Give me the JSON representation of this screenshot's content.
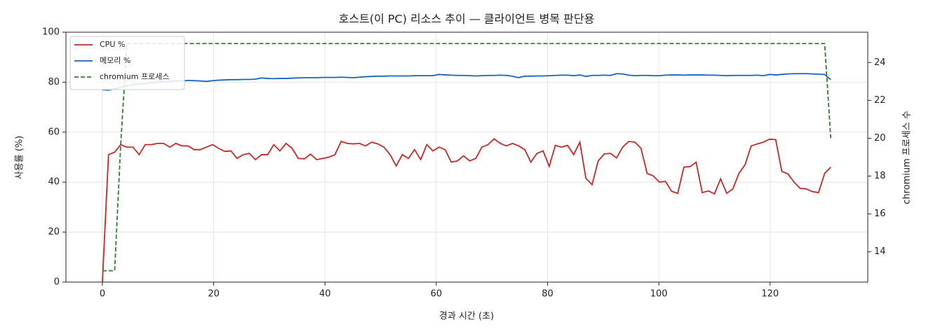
{
  "chart_data": {
    "type": "line",
    "title": "호스트(이 PC) 리소스 추이 — 클라이언트 병목 판단용",
    "xlabel": "경과 시간 (초)",
    "ylabel": "사용률 (%)",
    "y2label": "chromium 프로세스 수",
    "xlim": [
      -6.55,
      137.55
    ],
    "xticks": [
      0,
      20,
      40,
      60,
      80,
      100,
      120
    ],
    "ylim": [
      0,
      100
    ],
    "yticks": [
      0,
      20,
      40,
      60,
      80,
      100
    ],
    "y2lim": [
      12.4,
      25.6
    ],
    "y2ticks": [
      14,
      16,
      18,
      20,
      22,
      24
    ],
    "grid": true,
    "legend": "upper left",
    "x": [
      0,
      1.1,
      2.2,
      3.3,
      4.4,
      5.5,
      6.6,
      7.7,
      8.8,
      9.9,
      11,
      12.1,
      13.2,
      14.3,
      15.4,
      16.5,
      17.6,
      18.7,
      19.8,
      20.9,
      22,
      23.1,
      24.2,
      25.3,
      26.4,
      27.5,
      28.6,
      29.7,
      30.8,
      31.9,
      33,
      34.1,
      35.2,
      36.3,
      37.4,
      38.5,
      39.6,
      40.7,
      41.8,
      42.9,
      44,
      45.1,
      46.2,
      47.3,
      48.4,
      49.5,
      50.6,
      51.7,
      52.8,
      53.9,
      55,
      56.1,
      57.2,
      58.3,
      59.4,
      60.5,
      61.6,
      62.7,
      63.8,
      64.9,
      66,
      67.1,
      68.2,
      69.3,
      70.4,
      71.5,
      72.6,
      73.7,
      74.8,
      75.9,
      77,
      78.1,
      79.2,
      80.3,
      81.4,
      82.5,
      83.6,
      84.7,
      85.8,
      86.9,
      88,
      89.1,
      90.2,
      91.3,
      92.4,
      93.5,
      94.6,
      95.7,
      96.8,
      97.9,
      99,
      100.1,
      101.2,
      102.3,
      103.4,
      104.5,
      105.6,
      106.7,
      107.8,
      108.9,
      110,
      111.1,
      112.2,
      113.3,
      114.4,
      115.5,
      116.6,
      117.7,
      118.8,
      119.9,
      121,
      122.1,
      123.2,
      124.3,
      125.4,
      126.5,
      127.6,
      128.7,
      129.8,
      130.9
    ],
    "series": [
      {
        "name": "CPU %",
        "color": "#c62828",
        "linestyle": "solid",
        "values": [
          0,
          51,
          52,
          55,
          54,
          54,
          51,
          55,
          55,
          55.5,
          55.5,
          54,
          55.5,
          54.5,
          54.5,
          53,
          53,
          54,
          55,
          53.5,
          52.3,
          52.5,
          49.5,
          51,
          51.5,
          49,
          51,
          51,
          55,
          52.5,
          55.5,
          53.5,
          49.5,
          49.3,
          51.2,
          49,
          49.5,
          50,
          51,
          56.3,
          55.5,
          55.3,
          55.5,
          54.5,
          56,
          55.3,
          54,
          51,
          46.5,
          51,
          49.5,
          53,
          49,
          55,
          52.5,
          54,
          53,
          48,
          48.5,
          50.5,
          48.5,
          49.5,
          54,
          55,
          57.3,
          55.5,
          54.5,
          55.5,
          54.5,
          53,
          48,
          51.5,
          52.5,
          46.3,
          54.7,
          54,
          54.7,
          51,
          56,
          41.5,
          39,
          48.5,
          51.3,
          51.5,
          49.7,
          54,
          56.3,
          56,
          53.5,
          43.5,
          42.5,
          40,
          40.3,
          36.3,
          35.5,
          46,
          46.2,
          48,
          35.8,
          36.5,
          35.3,
          41.3,
          35.5,
          37.3,
          43.5,
          47,
          54.5,
          55.3,
          56,
          57.2,
          57,
          44.3,
          43.3,
          40,
          37.5,
          37.3,
          36.2,
          35.8,
          43.5,
          46
        ]
      },
      {
        "name": "메모리 %",
        "color": "#1565c0",
        "linestyle": "solid",
        "values": [
          77,
          76.8,
          77.3,
          78,
          78.5,
          79,
          79.3,
          79.5,
          79.8,
          80,
          80.2,
          80.3,
          80.5,
          80.5,
          80.7,
          80.6,
          80.5,
          80.3,
          80.6,
          80.8,
          80.9,
          81,
          81,
          81.1,
          81.1,
          81.2,
          81.7,
          81.5,
          81.4,
          81.5,
          81.5,
          81.6,
          81.7,
          81.8,
          81.8,
          81.8,
          81.9,
          81.9,
          81.9,
          82,
          81.9,
          81.8,
          82,
          82.2,
          82.3,
          82.4,
          82.4,
          82.5,
          82.5,
          82.5,
          82.5,
          82.6,
          82.6,
          82.6,
          82.6,
          83.1,
          82.9,
          82.8,
          82.7,
          82.7,
          82.6,
          82.5,
          82.6,
          82.7,
          82.7,
          82.8,
          82.7,
          82.4,
          81.8,
          82.4,
          82.4,
          82.5,
          82.5,
          82.6,
          82.7,
          82.8,
          82.8,
          82.6,
          82.9,
          82.3,
          82.7,
          82.7,
          82.8,
          82.7,
          83.4,
          83.3,
          82.8,
          82.6,
          82.7,
          82.7,
          82.6,
          82.6,
          82.8,
          82.9,
          82.9,
          82.8,
          82.9,
          82.9,
          82.9,
          82.8,
          82.8,
          82.7,
          82.6,
          82.7,
          82.7,
          82.7,
          82.7,
          82.8,
          82.6,
          83.1,
          82.9,
          83.1,
          83.3,
          83.4,
          83.4,
          83.4,
          83.3,
          83.2,
          83.1,
          81
        ]
      },
      {
        "name": "chromium 프로세스",
        "color": "#2e7d32",
        "linestyle": "dashed",
        "axis": "y2",
        "values": [
          13,
          13,
          13,
          19.7,
          25,
          25,
          25,
          25,
          25,
          25,
          25,
          25,
          25,
          25,
          25,
          25,
          25,
          25,
          25,
          25,
          25,
          25,
          25,
          25,
          25,
          25,
          25,
          25,
          25,
          25,
          25,
          25,
          25,
          25,
          25,
          25,
          25,
          25,
          25,
          25,
          25,
          25,
          25,
          25,
          25,
          25,
          25,
          25,
          25,
          25,
          25,
          25,
          25,
          25,
          25,
          25,
          25,
          25,
          25,
          25,
          25,
          25,
          25,
          25,
          25,
          25,
          25,
          25,
          25,
          25,
          25,
          25,
          25,
          25,
          25,
          25,
          25,
          25,
          25,
          25,
          25,
          25,
          25,
          25,
          25,
          25,
          25,
          25,
          25,
          25,
          25,
          25,
          25,
          25,
          25,
          25,
          25,
          25,
          25,
          25,
          25,
          25,
          25,
          25,
          25,
          25,
          25,
          25,
          25,
          25,
          25,
          25,
          25,
          25,
          25,
          25,
          25,
          25,
          25,
          20
        ]
      }
    ]
  }
}
